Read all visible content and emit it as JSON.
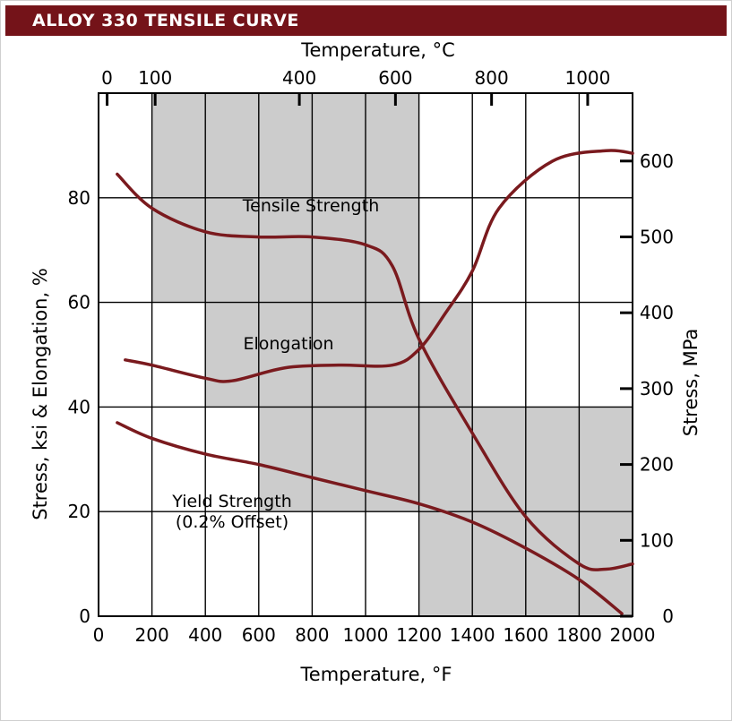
{
  "header": {
    "title": "ALLOY 330 TENSILE CURVE"
  },
  "chart_data": {
    "type": "line",
    "title": "ALLOY 330 TENSILE CURVE",
    "xlabel": "Temperature, °F",
    "x2label": "Temperature, °C",
    "ylabel": "Stress, ksi & Elongation, %",
    "y2label": "Stress, MPa",
    "xlim": [
      0,
      2000
    ],
    "ylim": [
      0,
      100
    ],
    "x2lim_c": [
      -17.8,
      1093.3
    ],
    "y2lim_mpa": [
      0,
      689.5
    ],
    "x_ticks": [
      "0",
      "200",
      "400",
      "600",
      "800",
      "1000",
      "1200",
      "1400",
      "1600",
      "1800",
      "2000"
    ],
    "y_ticks": [
      "0",
      "20",
      "40",
      "60",
      "80"
    ],
    "x2_ticks": [
      "0",
      "100",
      "400",
      "600",
      "800",
      "1000"
    ],
    "y2_ticks": [
      "0",
      "100",
      "200",
      "300",
      "400",
      "500",
      "600"
    ],
    "grid": true,
    "series": [
      {
        "name": "Tensile Strength",
        "color": "#7a1a1e",
        "x": [
          70,
          200,
          400,
          600,
          800,
          1000,
          1100,
          1200,
          1400,
          1600,
          1800,
          1900,
          2000
        ],
        "y": [
          84.5,
          78,
          73.5,
          72.5,
          72.5,
          71,
          67,
          53,
          35,
          19,
          10,
          9,
          10
        ]
      },
      {
        "name": "Elongation",
        "color": "#7a1a1e",
        "x": [
          100,
          200,
          400,
          500,
          700,
          900,
          1100,
          1200,
          1300,
          1400,
          1500,
          1700,
          1900,
          2000
        ],
        "y": [
          49,
          48,
          45.5,
          45,
          47.5,
          48,
          48,
          51,
          58,
          66,
          78,
          87,
          89,
          88.5
        ]
      },
      {
        "name": "Yield Strength (0.2% Offset)",
        "color": "#7a1a1e",
        "x": [
          70,
          200,
          400,
          600,
          800,
          1000,
          1200,
          1400,
          1600,
          1800,
          1960
        ],
        "y": [
          37,
          34,
          31,
          29,
          26.5,
          24,
          21.5,
          18,
          13,
          7,
          0.5
        ]
      }
    ],
    "annotations": [
      "Tensile Strength",
      "Elongation",
      "Yield Strength",
      "(0.2% Offset)"
    ],
    "shaded_regions_deg_f_ksi": [
      {
        "x": [
          200,
          1200
        ],
        "y": [
          60,
          100
        ]
      },
      {
        "x": [
          400,
          1200
        ],
        "y": [
          40,
          60
        ]
      },
      {
        "x": [
          1200,
          1400
        ],
        "y": [
          40,
          60
        ]
      },
      {
        "x": [
          600,
          1200
        ],
        "y": [
          20,
          40
        ]
      },
      {
        "x": [
          1200,
          2000
        ],
        "y": [
          0,
          40
        ]
      }
    ],
    "shade_color": "#cccccc"
  }
}
